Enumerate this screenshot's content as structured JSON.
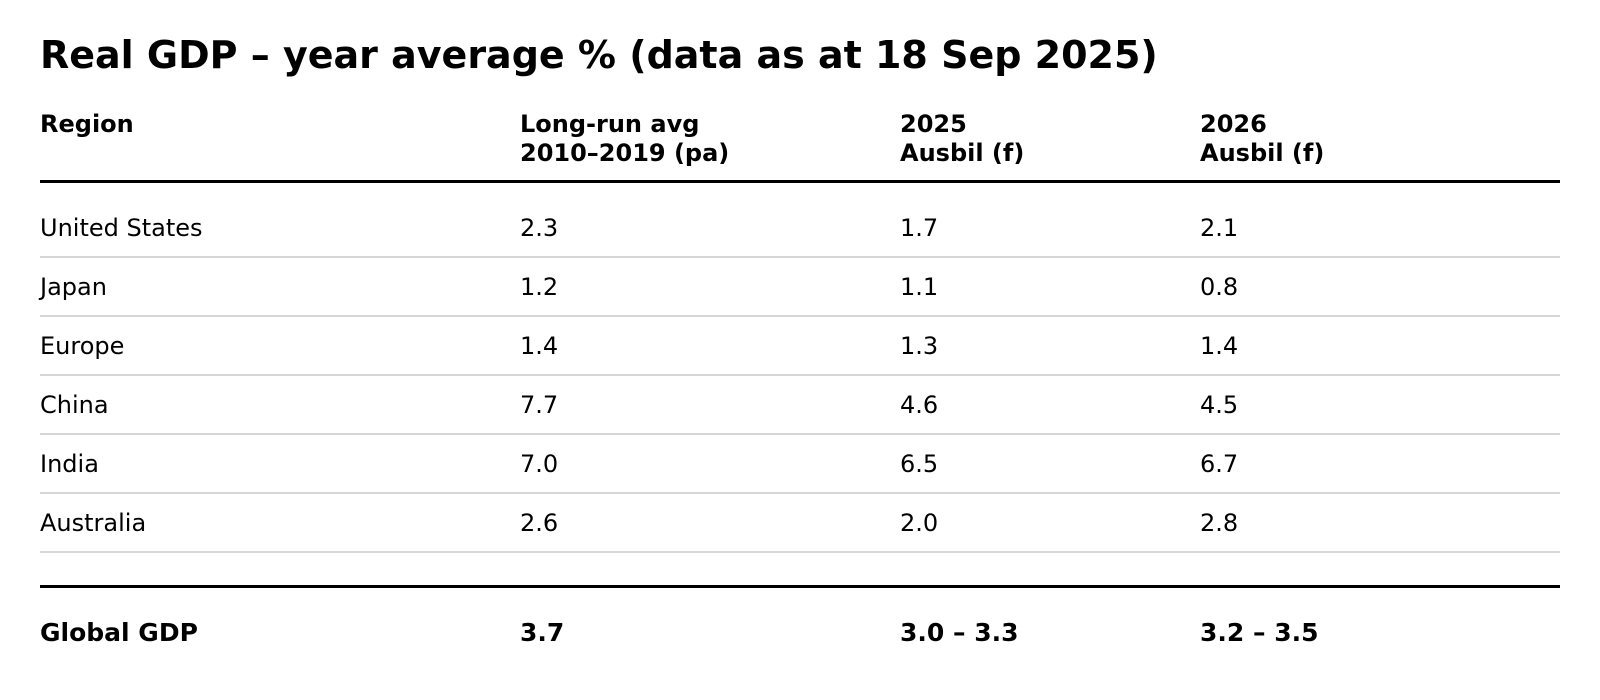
{
  "chart_data": {
    "type": "table",
    "title": "Real GDP – year average % (data as at 18 Sep 2025)",
    "columns": [
      [
        "Region"
      ],
      [
        "Long-run avg",
        "2010–2019 (pa)"
      ],
      [
        "2025",
        "Ausbil (f)"
      ],
      [
        "2026",
        "Ausbil (f)"
      ]
    ],
    "rows": [
      [
        "United States",
        "2.3",
        "1.7",
        "2.1"
      ],
      [
        "Japan",
        "1.2",
        "1.1",
        "0.8"
      ],
      [
        "Europe",
        "1.4",
        "1.3",
        "1.4"
      ],
      [
        "China",
        "7.7",
        "4.6",
        "4.5"
      ],
      [
        "India",
        "7.0",
        "6.5",
        "6.7"
      ],
      [
        "Australia",
        "2.6",
        "2.0",
        "2.8"
      ]
    ],
    "total": [
      "Global GDP",
      "3.7",
      "3.0 – 3.3",
      "3.2 – 3.5"
    ]
  }
}
